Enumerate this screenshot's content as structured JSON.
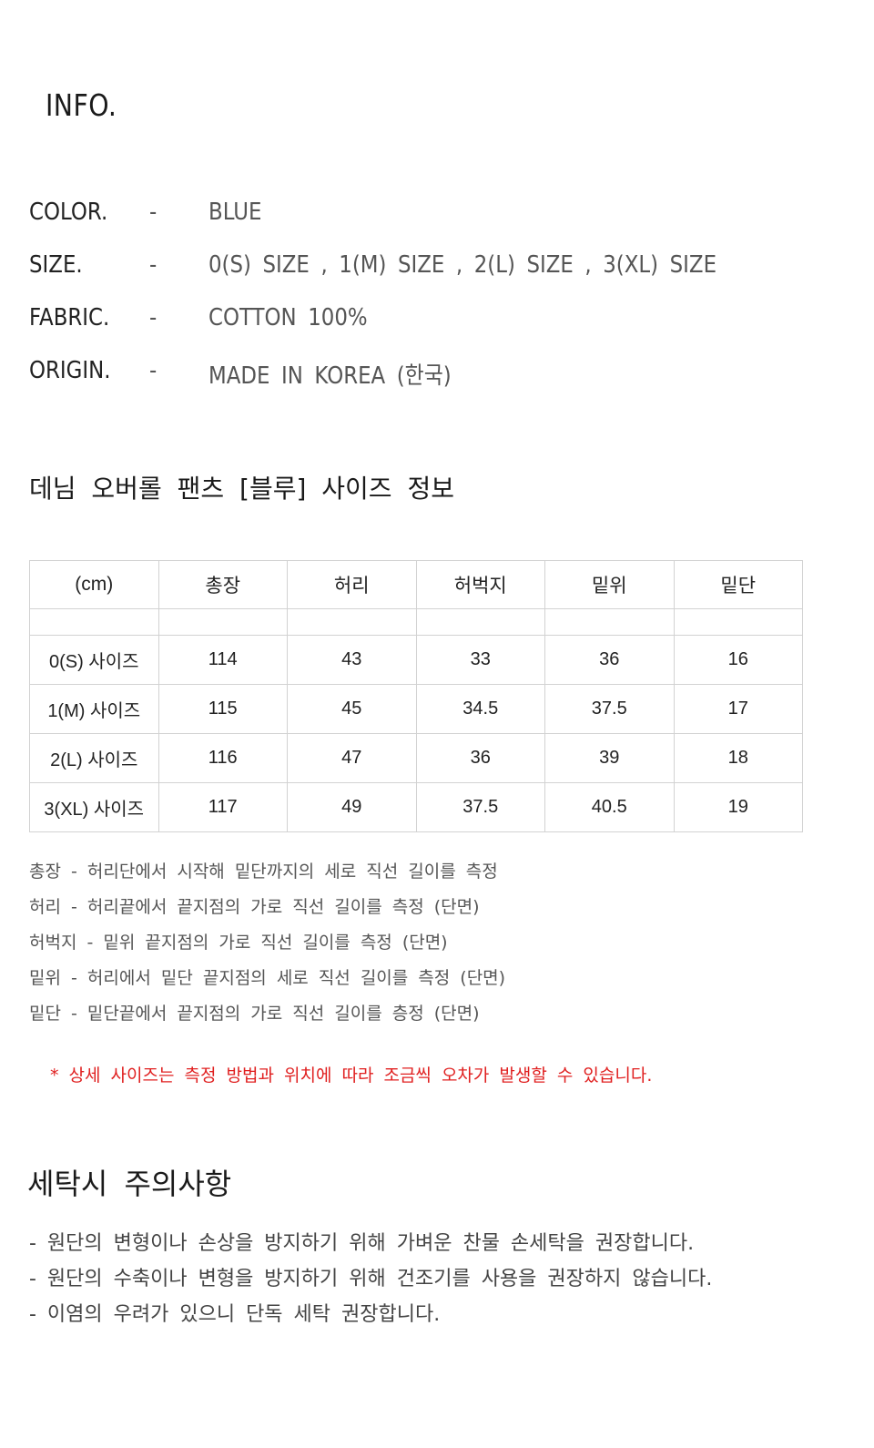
{
  "info": {
    "title": "INFO.",
    "specs": [
      {
        "key": "COLOR.",
        "dash": "-",
        "value": "BLUE"
      },
      {
        "key": "SIZE.",
        "dash": "-",
        "value": "0(S) SIZE , 1(M) SIZE , 2(L) SIZE , 3(XL) SIZE"
      },
      {
        "key": "FABRIC.",
        "dash": "-",
        "value": "COTTON 100%"
      },
      {
        "key": "ORIGIN.",
        "dash": "-",
        "value": "MADE IN KOREA (한국)"
      }
    ]
  },
  "size_section": {
    "title": "데님 오버롤 팬츠 [블루] 사이즈 정보",
    "headers": [
      "(cm)",
      "총장",
      "허리",
      "허벅지",
      "밑위",
      "밑단"
    ],
    "rows": [
      [
        "0(S) 사이즈",
        "114",
        "43",
        "33",
        "36",
        "16"
      ],
      [
        "1(M) 사이즈",
        "115",
        "45",
        "34.5",
        "37.5",
        "17"
      ],
      [
        "2(L) 사이즈",
        "116",
        "47",
        "36",
        "39",
        "18"
      ],
      [
        "3(XL) 사이즈",
        "117",
        "49",
        "37.5",
        "40.5",
        "19"
      ]
    ],
    "notes": [
      "총장 - 허리단에서 시작해 밑단까지의 세로 직선 길이를 측정",
      "허리 - 허리끝에서 끝지점의 가로 직선 길이를 측정 (단면)",
      "허벅지 - 밑위 끝지점의 가로 직선 길이를 측정 (단면)",
      "밑위 - 허리에서 밑단 끝지점의 세로 직선 길이를 측정 (단면)",
      "밑단 - 밑단끝에서 끝지점의 가로 직선 길이를 층정 (단면)"
    ],
    "warning": "* 상세 사이즈는 측정 방법과 위치에 따라 조금씩 오차가 발생할 수 있습니다."
  },
  "care": {
    "title": "세탁시 주의사항",
    "items": [
      "- 원단의 변형이나 손상을 방지하기 위해 가벼운 찬물 손세탁을 권장합니다.",
      "- 원단의 수축이나 변형을 방지하기 위해 건조기를 사용을 권장하지 않습니다.",
      "- 이염의 우려가 있으니 단독 세탁 권장합니다."
    ]
  },
  "colors": {
    "warning": "#e02020",
    "text": "#2a2a2a",
    "border": "#d2d2d2"
  }
}
